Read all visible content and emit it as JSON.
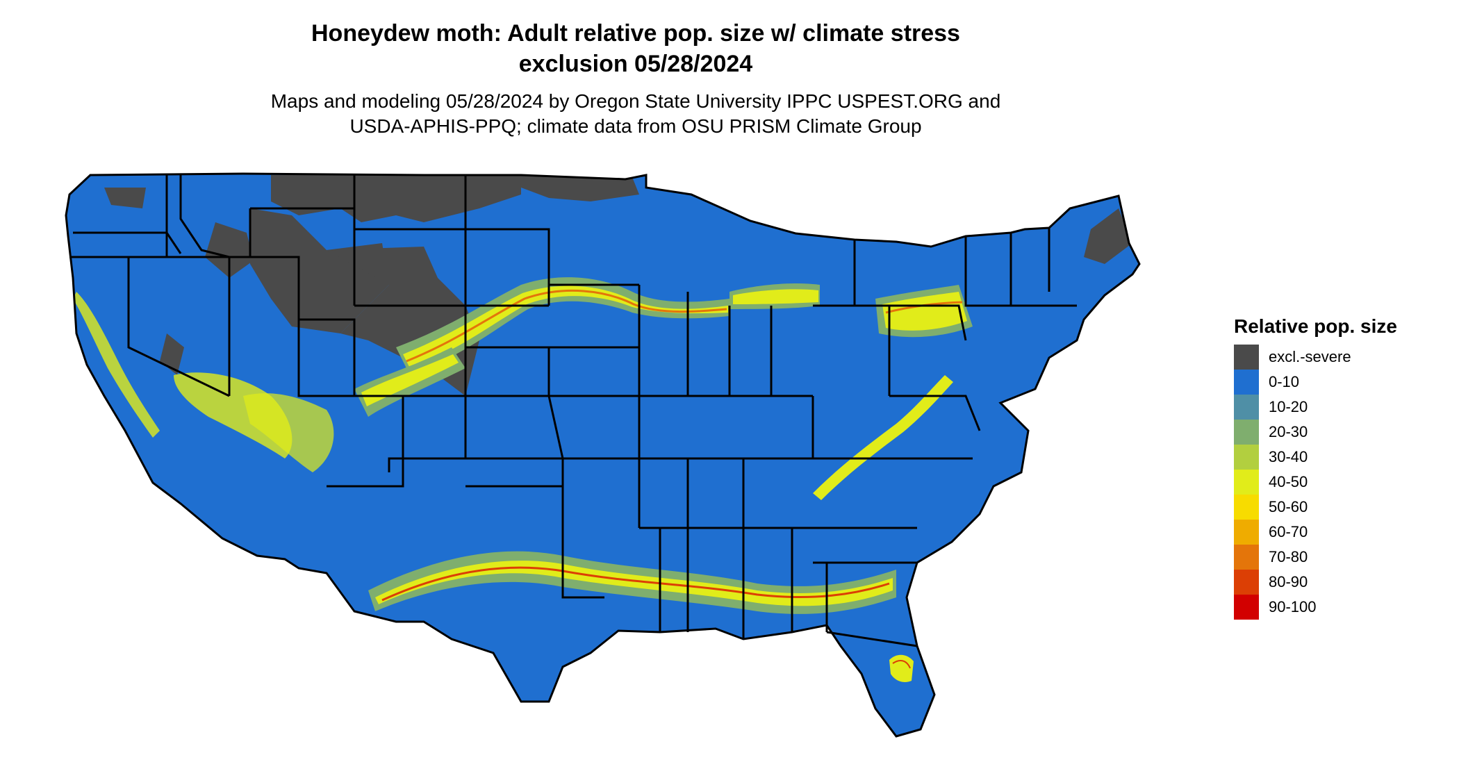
{
  "title": {
    "line1": "Honeydew moth: Adult relative pop. size w/ climate stress",
    "line2": "exclusion 05/28/2024"
  },
  "subtitle": {
    "line1": "Maps and modeling 05/28/2024 by Oregon State University IPPC USPEST.ORG and",
    "line2": "USDA-APHIS-PPQ; climate data from OSU PRISM Climate Group"
  },
  "map": {
    "base_color": "#1f6fd0",
    "border_color": "#000000"
  },
  "legend": {
    "title": "Relative pop. size",
    "items": [
      {
        "label": "excl.-severe",
        "color": "#4a4a4a"
      },
      {
        "label": "0-10",
        "color": "#1f6fd0"
      },
      {
        "label": "10-20",
        "color": "#4f8fa6"
      },
      {
        "label": "20-30",
        "color": "#7fae6e"
      },
      {
        "label": "30-40",
        "color": "#b2cf3f"
      },
      {
        "label": "40-50",
        "color": "#e1ec1a"
      },
      {
        "label": "50-60",
        "color": "#f7dc00"
      },
      {
        "label": "60-70",
        "color": "#efac00"
      },
      {
        "label": "70-80",
        "color": "#e4750a"
      },
      {
        "label": "80-90",
        "color": "#dc3f05"
      },
      {
        "label": "90-100",
        "color": "#d20000"
      }
    ]
  }
}
